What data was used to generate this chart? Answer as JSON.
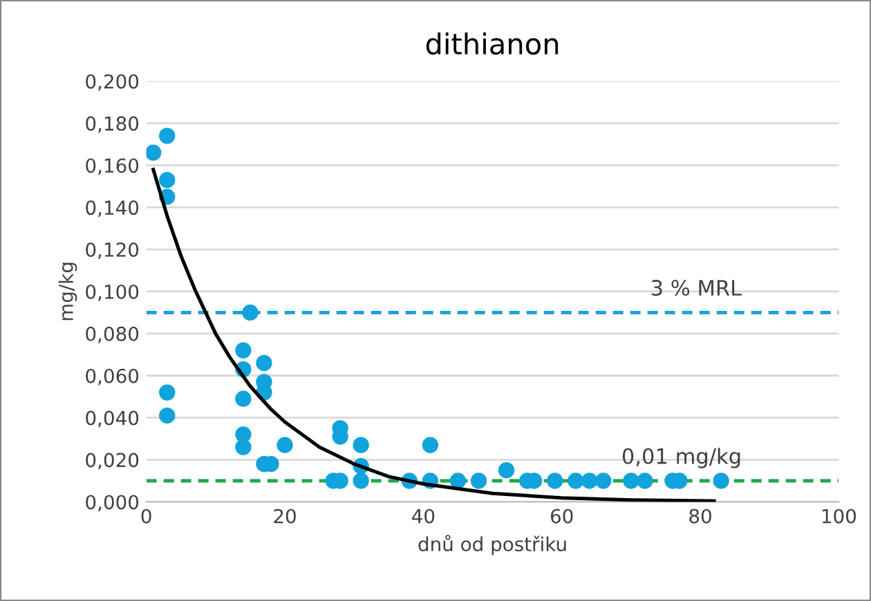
{
  "chart_data": {
    "type": "scatter",
    "title": "dithianon",
    "xlabel": "dnů od postřiku",
    "ylabel": "mg/kg",
    "xlim": [
      0,
      100
    ],
    "xticks": [
      0,
      20,
      40,
      60,
      80,
      100
    ],
    "ylim": [
      0,
      0.2
    ],
    "yticks": [
      {
        "value": 0,
        "label": "0,000"
      },
      {
        "value": 0.02,
        "label": "0,020"
      },
      {
        "value": 0.04,
        "label": "0,040"
      },
      {
        "value": 0.06,
        "label": "0,060"
      },
      {
        "value": 0.08,
        "label": "0,080"
      },
      {
        "value": 0.1,
        "label": "0,100"
      },
      {
        "value": 0.12,
        "label": "0,120"
      },
      {
        "value": 0.14,
        "label": "0,140"
      },
      {
        "value": 0.16,
        "label": "0,160"
      },
      {
        "value": 0.18,
        "label": "0,180"
      },
      {
        "value": 0.2,
        "label": "0,200"
      }
    ],
    "grid": "y",
    "legend": false,
    "series": [
      {
        "marker": "circle",
        "color": "#12a3dc",
        "x": [
          1,
          3,
          3,
          3,
          3,
          3,
          14,
          14,
          14,
          14,
          14,
          15,
          17,
          17,
          17,
          17,
          18,
          20,
          27,
          28,
          28,
          28,
          31,
          31,
          31,
          38,
          41,
          41,
          45,
          48,
          52,
          55,
          56,
          59,
          62,
          64,
          66,
          70,
          72,
          76,
          77,
          83
        ],
        "values": [
          0.166,
          0.174,
          0.153,
          0.145,
          0.052,
          0.041,
          0.072,
          0.063,
          0.049,
          0.032,
          0.026,
          0.09,
          0.066,
          0.057,
          0.052,
          0.018,
          0.018,
          0.027,
          0.01,
          0.035,
          0.031,
          0.01,
          0.027,
          0.017,
          0.01,
          0.01,
          0.027,
          0.01,
          0.01,
          0.01,
          0.015,
          0.01,
          0.01,
          0.01,
          0.01,
          0.01,
          0.01,
          0.01,
          0.01,
          0.01,
          0.01,
          0.01
        ]
      },
      {
        "type": "line",
        "color": "#000000",
        "x": [
          1,
          3,
          5,
          7,
          10,
          12,
          15,
          18,
          20,
          25,
          30,
          35,
          40,
          50,
          60,
          70,
          82
        ],
        "values": [
          0.158,
          0.136,
          0.117,
          0.101,
          0.08,
          0.069,
          0.055,
          0.044,
          0.038,
          0.026,
          0.018,
          0.012,
          0.0085,
          0.004,
          0.0019,
          0.0009,
          0.0004
        ]
      }
    ],
    "ref_lines": [
      {
        "axis": "y",
        "value": 0.09,
        "label": "3 % MRL",
        "color": "#1ba1e2",
        "line_style": "dashed"
      },
      {
        "axis": "y",
        "value": 0.01,
        "label": "0,01 mg/kg",
        "color": "#1fa64a",
        "line_style": "dashed"
      }
    ]
  }
}
